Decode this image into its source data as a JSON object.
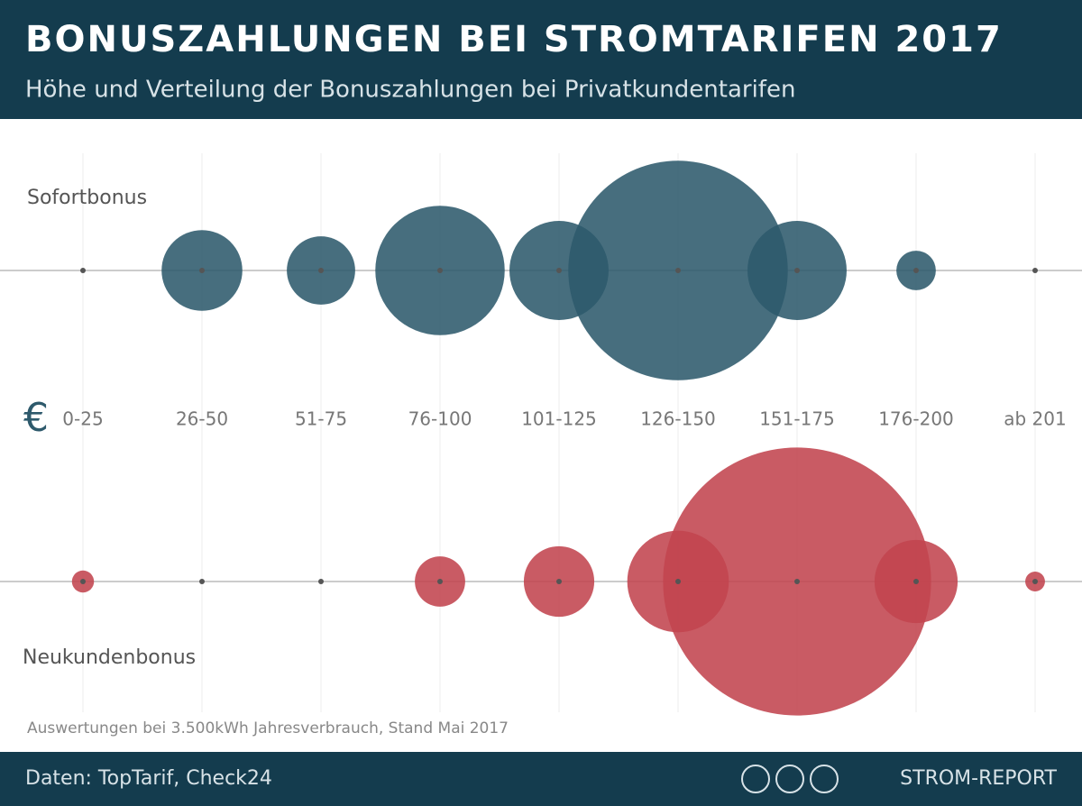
{
  "chart_data": {
    "type": "bubble",
    "title": "BONUSZAHLUNGEN BEI STROMTARIFEN 2017",
    "subtitle": "Höhe und Verteilung der Bonuszahlungen bei Privatkundentarifen",
    "currency": "€",
    "categories": [
      "0-25",
      "26-50",
      "51-75",
      "76-100",
      "101-125",
      "126-150",
      "151-175",
      "176-200",
      "ab 201"
    ],
    "series": [
      {
        "name": "Sofortbonus",
        "color": "#2e5a6c",
        "values": [
          0,
          6.7,
          4.8,
          17.2,
          10.1,
          49.5,
          10.1,
          1.6,
          0
        ]
      },
      {
        "name": "Neukundenbonus",
        "color": "#c1444f",
        "values": [
          0.5,
          0,
          0,
          2.6,
          5.1,
          10.6,
          73.8,
          7.1,
          0.4
        ]
      }
    ],
    "note": "Auswertungen bei 3.500kWh Jahresverbrauch, Stand Mai 2017",
    "source": "Daten: TopTarif, Check24",
    "brand": "STROM-REPORT"
  }
}
